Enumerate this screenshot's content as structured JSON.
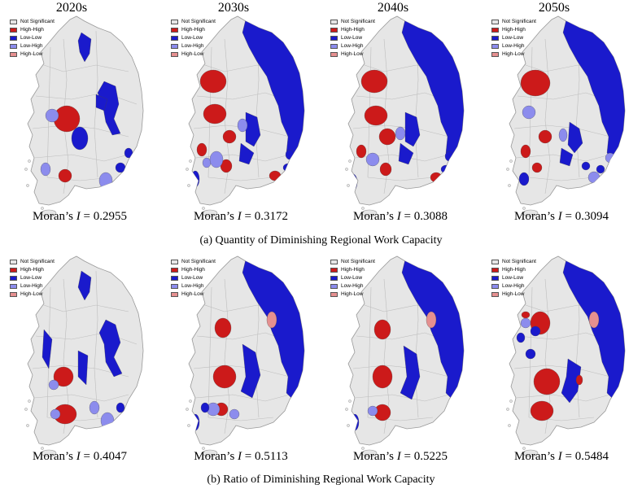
{
  "decades": [
    "2020s",
    "2030s",
    "2040s",
    "2050s"
  ],
  "legend": {
    "items": [
      {
        "label": "Not Significant",
        "color": "#e6e6e6"
      },
      {
        "label": "High-High",
        "color": "#cc1a1a"
      },
      {
        "label": "Low-Low",
        "color": "#1a1acc"
      },
      {
        "label": "Low-High",
        "color": "#8c8ced"
      },
      {
        "label": "High-Low",
        "color": "#e59090"
      }
    ]
  },
  "moran_prefix": "Moran’s ",
  "moran_symbol": "I",
  "moran_equals": " = ",
  "panels": [
    {
      "caption": "(a) Quantity of Diminishing Regional Work Capacity",
      "moran": [
        "0.2955",
        "0.3172",
        "0.3088",
        "0.3094"
      ]
    },
    {
      "caption": "(b) Ratio of Diminishing Regional Work Capacity",
      "moran": [
        "0.4047",
        "0.5113",
        "0.5225",
        "0.5484"
      ]
    }
  ]
}
